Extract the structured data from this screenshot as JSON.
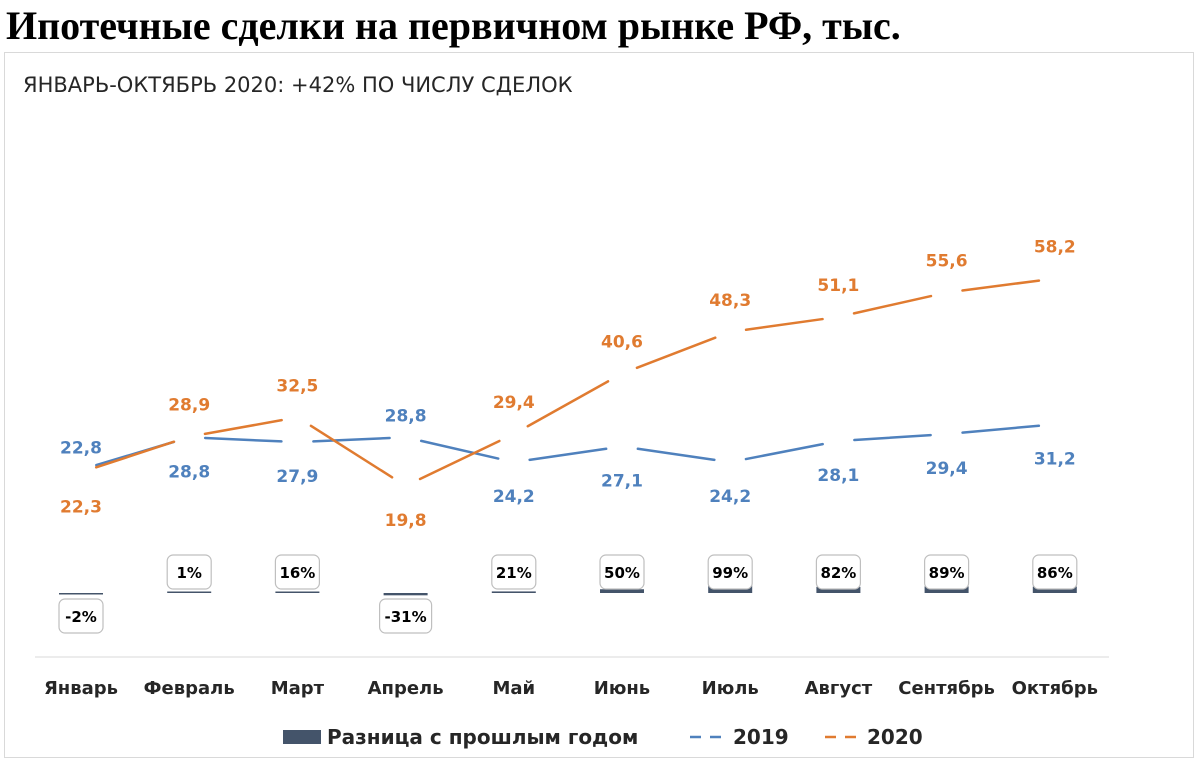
{
  "title": "Ипотечные сделки на первичном рынке РФ, тыс.",
  "chart_data": {
    "type": "line",
    "subtitle": "ЯНВАРЬ-ОКТЯБРЬ 2020: +42% ПО ЧИСЛУ СДЕЛОК",
    "categories": [
      "Январь",
      "Февраль",
      "Март",
      "Апрель",
      "Май",
      "Июнь",
      "Июль",
      "Август",
      "Сентябрь",
      "Октябрь"
    ],
    "series": [
      {
        "name": "2019",
        "color": "#4f81bd",
        "values": [
          22.8,
          28.8,
          27.9,
          28.8,
          24.2,
          27.1,
          24.2,
          28.1,
          29.4,
          31.2
        ],
        "labels": [
          "22,8",
          "28,8",
          "27,9",
          "28,8",
          "24,2",
          "27,1",
          "24,2",
          "28,1",
          "29,4",
          "31,2"
        ]
      },
      {
        "name": "2020",
        "color": "#e07b30",
        "values": [
          22.3,
          28.9,
          32.5,
          19.8,
          29.4,
          40.6,
          48.3,
          51.1,
          55.6,
          58.2
        ],
        "labels": [
          "22,3",
          "28,9",
          "32,5",
          "19,8",
          "29,4",
          "40,6",
          "48,3",
          "51,1",
          "55,6",
          "58,2"
        ]
      }
    ],
    "difference": {
      "name": "Разница с прошлым годом",
      "color": "#44546a",
      "values": [
        -2,
        1,
        16,
        -31,
        21,
        50,
        99,
        82,
        89,
        86
      ],
      "labels": [
        "-2%",
        "1%",
        "16%",
        "-31%",
        "21%",
        "50%",
        "99%",
        "82%",
        "89%",
        "86%"
      ]
    },
    "legend": {
      "position": "bottom",
      "items": [
        "Разница с прошлым годом",
        "2019",
        "2020"
      ]
    }
  }
}
